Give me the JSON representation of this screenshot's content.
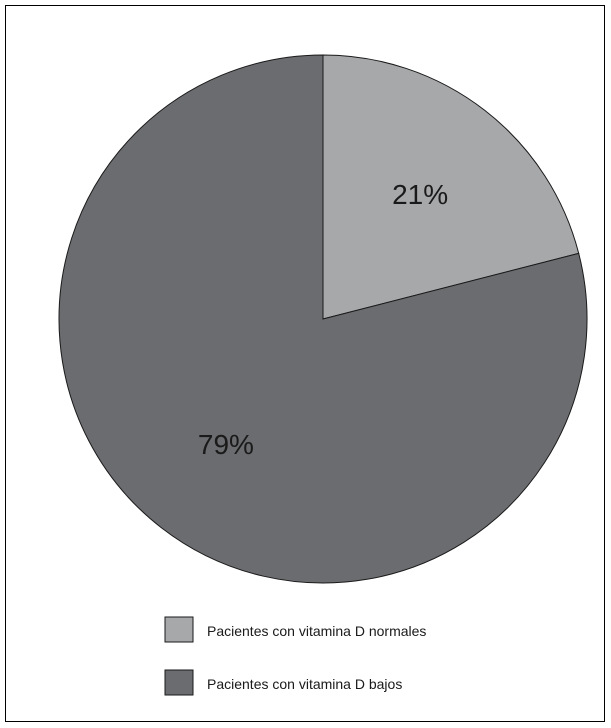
{
  "chart_data": {
    "type": "pie",
    "title": "",
    "start": "12 o'clock",
    "direction": "clockwise",
    "slices": [
      {
        "label": "Pacientes con vitamina D normales",
        "value": 21,
        "display": "21%",
        "color": "#a7a8aa"
      },
      {
        "label": "Pacientes con vitamina D bajos",
        "value": 79,
        "display": "79%",
        "color": "#6b6c6f"
      }
    ],
    "legend": {
      "position": "bottom",
      "items": [
        {
          "label": "Pacientes con vitamina D normales",
          "color": "#a7a8aa"
        },
        {
          "label": "Pacientes con vitamina D bajos",
          "color": "#6b6c6f"
        }
      ]
    }
  }
}
